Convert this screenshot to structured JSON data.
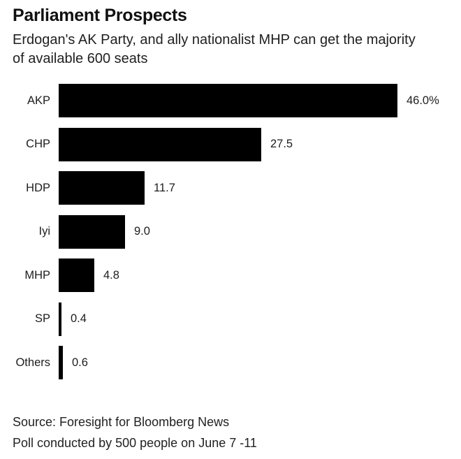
{
  "page": {
    "background_color": "#ffffff",
    "text_color": "#1d1d1d"
  },
  "header": {
    "title": "Parliament Prospects",
    "subtitle_lines": [
      "Erdogan's AK Party, and ally nationalist MHP can get the majority",
      "of available 600 seats"
    ]
  },
  "footer": {
    "source_line": "Source: Foresight for Bloomberg News",
    "poll_line": "Poll conducted by 500 people on June 7 -11"
  },
  "chart_data": {
    "type": "bar",
    "orientation": "horizontal",
    "title": "Parliament Prospects",
    "subtitle": "Erdogan's AK Party, and ally nationalist MHP can get the majority of available 600 seats",
    "categories": [
      "AKP",
      "CHP",
      "HDP",
      "Iyi",
      "MHP",
      "SP",
      "Others"
    ],
    "values": [
      46.0,
      27.5,
      11.7,
      9.0,
      4.8,
      0.4,
      0.6
    ],
    "value_labels": [
      "46.0%",
      "27.5",
      "11.7",
      "9.0",
      "4.8",
      "0.4",
      "0.6"
    ],
    "xlabel": "",
    "ylabel": "",
    "xlim": [
      0,
      46
    ],
    "grid": false,
    "legend": false,
    "bar_color": "#000000",
    "source": "Source: Foresight for Bloomberg News",
    "note": "Poll conducted by 500 people on June 7 -11"
  }
}
